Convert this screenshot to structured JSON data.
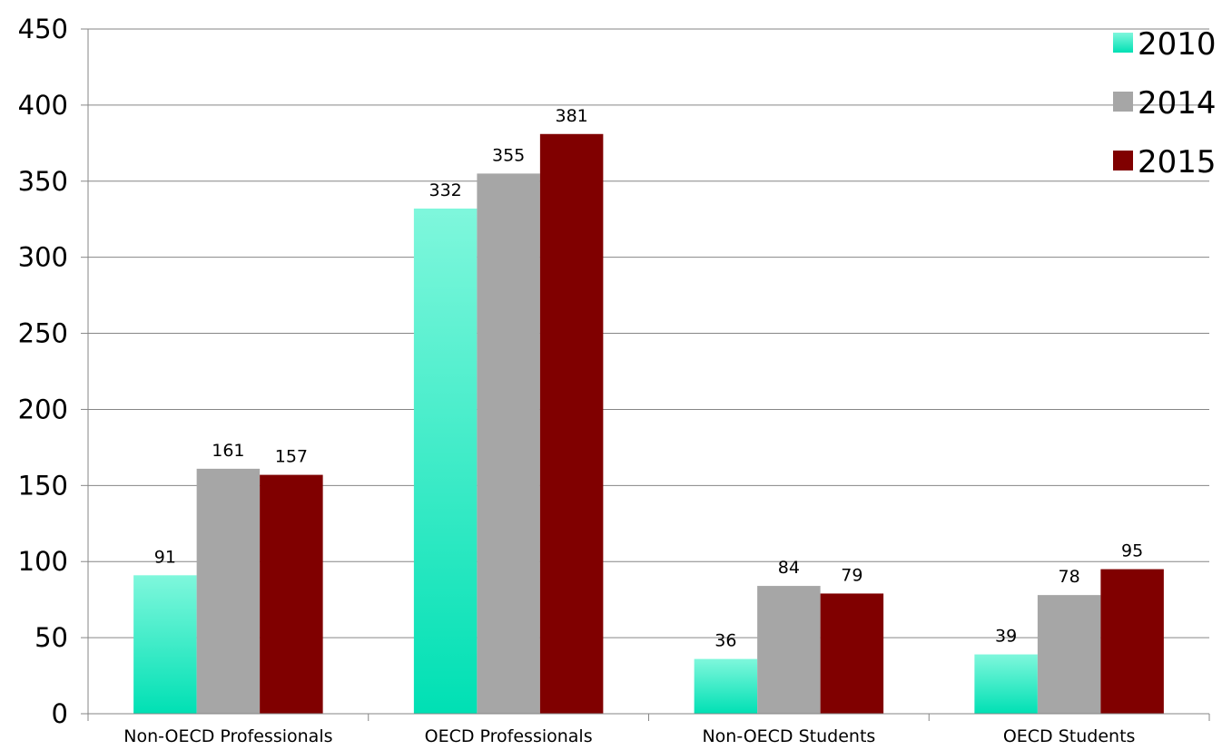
{
  "chart_data": {
    "type": "bar",
    "categories": [
      "Non-OECD Professionals",
      "OECD Professionals",
      "Non-OECD Students",
      "OECD Students"
    ],
    "series": [
      {
        "name": "2010",
        "values": [
          91,
          332,
          36,
          39
        ],
        "color_top": "#7ff7dc",
        "color_bottom": "#00e0b4"
      },
      {
        "name": "2014",
        "values": [
          161,
          355,
          84,
          78
        ],
        "color": "#a6a6a6"
      },
      {
        "name": "2015",
        "values": [
          157,
          381,
          79,
          95
        ],
        "color": "#800000"
      }
    ],
    "ylim": [
      0,
      450
    ],
    "yticks": [
      0,
      50,
      100,
      150,
      200,
      250,
      300,
      350,
      400,
      450
    ],
    "grid": true,
    "legend_position": "top-right",
    "data_labels": true
  }
}
